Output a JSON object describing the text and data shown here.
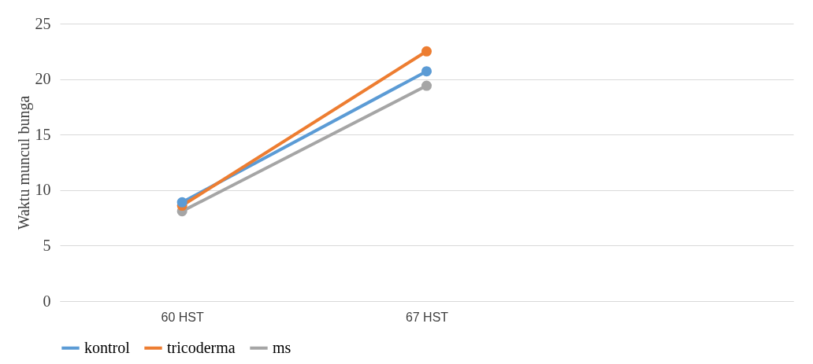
{
  "chart_data": {
    "type": "line",
    "ylabel": "Waktu  muncul bunga",
    "categories": [
      "60 HST",
      "67 HST",
      null
    ],
    "series": [
      {
        "name": "kontrol",
        "color": "#5b9bd5",
        "values": [
          8.9,
          20.7,
          null
        ]
      },
      {
        "name": "tricoderma",
        "color": "#ed7d31",
        "values": [
          8.6,
          22.5,
          null
        ]
      },
      {
        "name": "ms",
        "color": "#a5a5a5",
        "values": [
          8.1,
          19.4,
          null
        ]
      }
    ],
    "ylim": [
      0,
      25
    ],
    "yticks": [
      0,
      5,
      10,
      15,
      20,
      25
    ],
    "grid": "y",
    "legend": "bottom",
    "marker": "circle",
    "line_style": "solid"
  }
}
